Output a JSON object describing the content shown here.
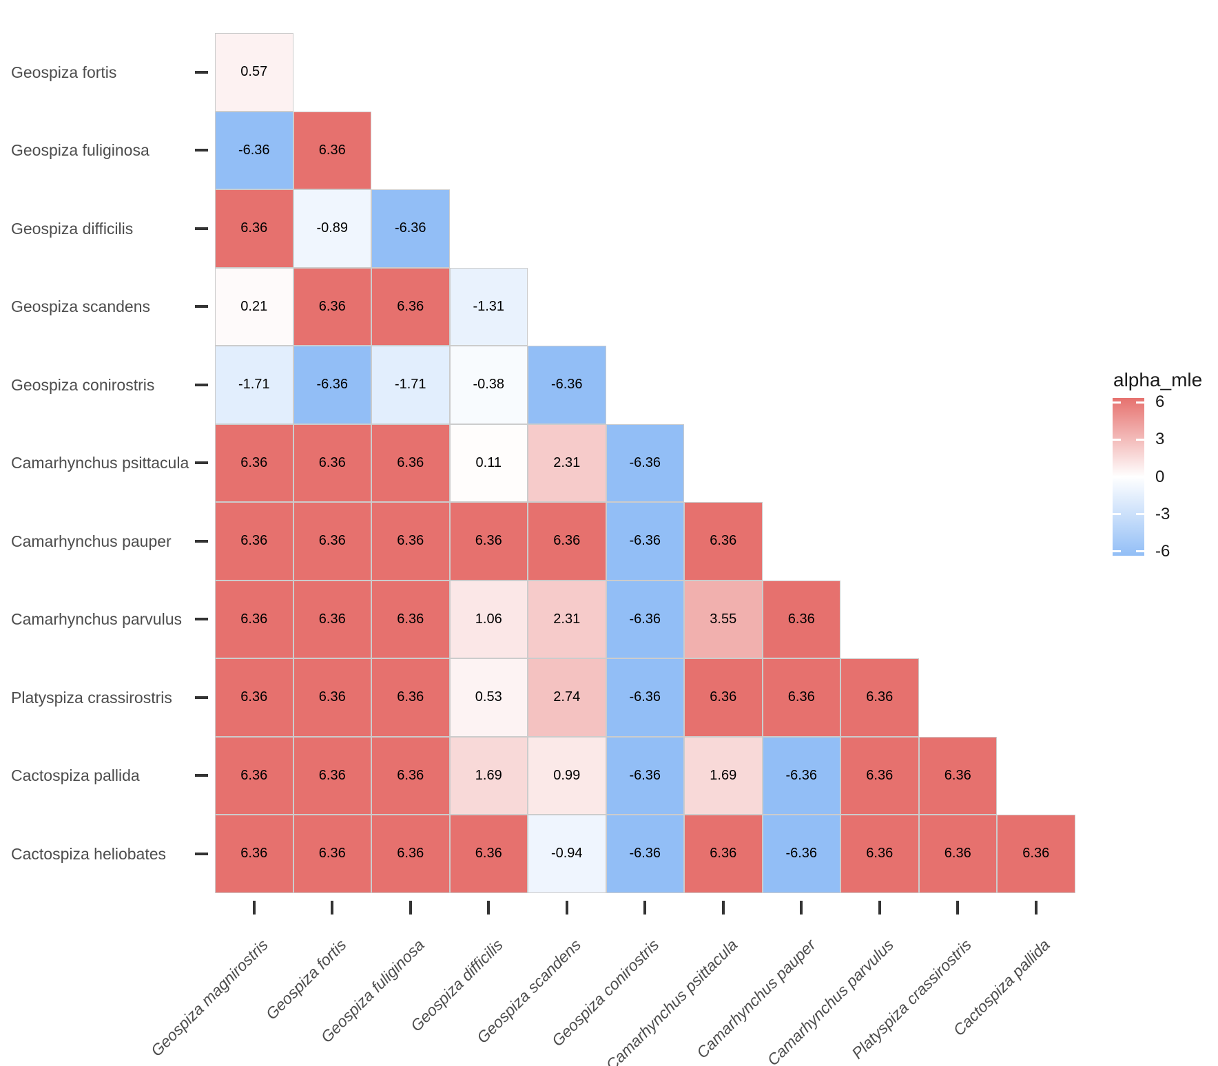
{
  "chart_data": {
    "type": "heatmap",
    "shape": "lower-triangle",
    "title": "",
    "legend": {
      "title": "alpha_mle",
      "position": "right",
      "tick_values": [
        6,
        3,
        0,
        -3,
        -6
      ]
    },
    "scale": {
      "domain": [
        -6.36,
        6.36
      ],
      "low_color": "#92BEF6",
      "mid_color": "#FFFFFF",
      "high_color": "#E6716E"
    },
    "x_categories": [
      "Geospiza magnirostris",
      "Geospiza fortis",
      "Geospiza fuliginosa",
      "Geospiza difficilis",
      "Geospiza scandens",
      "Geospiza conirostris",
      "Camarhynchus psittacula",
      "Camarhynchus pauper",
      "Camarhynchus parvulus",
      "Platyspiza crassirostris",
      "Cactospiza pallida"
    ],
    "rows": [
      {
        "label": "Geospiza fortis",
        "values": [
          0.57
        ]
      },
      {
        "label": "Geospiza fuliginosa",
        "values": [
          -6.36,
          6.36
        ]
      },
      {
        "label": "Geospiza difficilis",
        "values": [
          6.36,
          -0.89,
          -6.36
        ]
      },
      {
        "label": "Geospiza scandens",
        "values": [
          0.21,
          6.36,
          6.36,
          -1.31
        ]
      },
      {
        "label": "Geospiza conirostris",
        "values": [
          -1.71,
          -6.36,
          -1.71,
          -0.38,
          -6.36
        ]
      },
      {
        "label": "Camarhynchus psittacula",
        "values": [
          6.36,
          6.36,
          6.36,
          0.11,
          2.31,
          -6.36
        ]
      },
      {
        "label": "Camarhynchus pauper",
        "values": [
          6.36,
          6.36,
          6.36,
          6.36,
          6.36,
          -6.36,
          6.36
        ]
      },
      {
        "label": "Camarhynchus parvulus",
        "values": [
          6.36,
          6.36,
          6.36,
          1.06,
          2.31,
          -6.36,
          3.55,
          6.36
        ]
      },
      {
        "label": "Platyspiza crassirostris",
        "values": [
          6.36,
          6.36,
          6.36,
          0.53,
          2.74,
          -6.36,
          6.36,
          6.36,
          6.36
        ]
      },
      {
        "label": "Cactospiza pallida",
        "values": [
          6.36,
          6.36,
          6.36,
          1.69,
          0.99,
          -6.36,
          1.69,
          -6.36,
          6.36,
          6.36
        ]
      },
      {
        "label": "Cactospiza heliobates",
        "values": [
          6.36,
          6.36,
          6.36,
          6.36,
          -0.94,
          -6.36,
          6.36,
          -6.36,
          6.36,
          6.36,
          6.36
        ]
      }
    ],
    "value_label_decimals": 2
  },
  "colors": {
    "background": "#FFFFFF",
    "axis_text": "#4D4D4D",
    "tick_mark": "#333333",
    "grid": "#CCCCCC",
    "cell_text": "#000000",
    "legend_text": "#1A1A1A"
  }
}
